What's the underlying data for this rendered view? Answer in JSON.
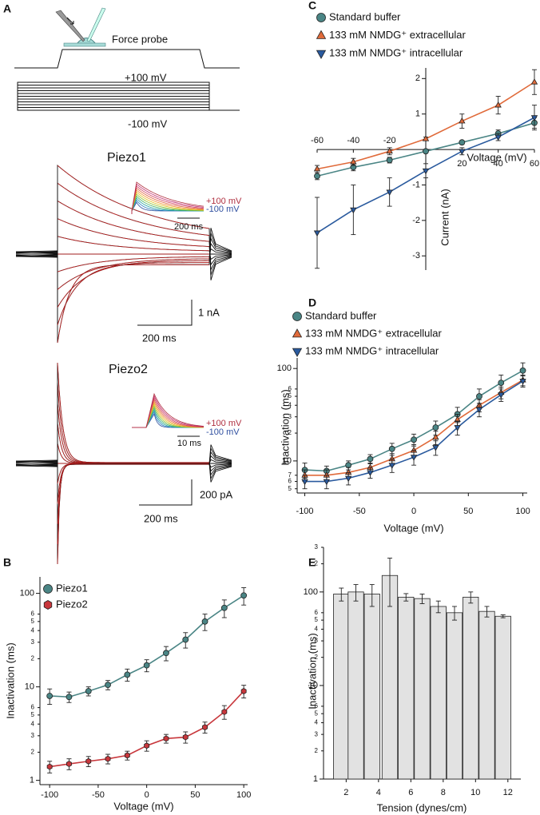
{
  "panel_a": {
    "label": "A",
    "stimulus": "Force probe",
    "step_high": "+100 mV",
    "step_low": "-100 mV",
    "piezo1": {
      "title": "Piezo1",
      "inset_high": "+100 mV",
      "inset_low": "-100 mV",
      "inset_scale": "200 ms",
      "scale_y": "1 nA",
      "scale_x": "200 ms"
    },
    "piezo2": {
      "title": "Piezo2",
      "inset_high": "+100 mV",
      "inset_low": "-100 mV",
      "inset_scale": "10 ms",
      "scale_y": "200 pA",
      "scale_x": "200 ms"
    }
  },
  "chart_data": [
    {
      "type": "line",
      "label": "B",
      "x_label": "Voltage (mV)",
      "y_label": "Inactivation (ms)",
      "yscale": "log",
      "legend": "upper left",
      "x": [
        -100,
        -80,
        -60,
        -40,
        -20,
        0,
        20,
        40,
        60,
        80,
        100
      ],
      "xlim": [
        -110,
        104
      ],
      "xticks": [
        -100,
        -50,
        0,
        50,
        100
      ],
      "ylim": [
        0.9,
        150
      ],
      "yticks": [
        1,
        2,
        3,
        4,
        5,
        6,
        10,
        {
          "value": 20,
          "label": "2"
        },
        {
          "value": 30,
          "label": "3"
        },
        {
          "value": 40,
          "label": "4"
        },
        {
          "value": 50,
          "label": "5"
        },
        {
          "value": 60,
          "label": "6"
        },
        100
      ],
      "series": [
        {
          "name": "Piezo1",
          "color": "#4a8585",
          "marker": "circle",
          "values": [
            8,
            7.8,
            9,
            10.5,
            13.5,
            17,
            23,
            32,
            50,
            70,
            95
          ],
          "errors": [
            1.5,
            1,
            1,
            1.2,
            2,
            2.5,
            4,
            6,
            10,
            15,
            20
          ]
        },
        {
          "name": "Piezo2",
          "color": "#c8373c",
          "marker": "hexagon",
          "values": [
            1.4,
            1.5,
            1.6,
            1.7,
            1.85,
            2.35,
            2.8,
            2.9,
            3.7,
            5.4,
            9
          ],
          "errors": [
            0.2,
            0.2,
            0.2,
            0.2,
            0.2,
            0.3,
            0.3,
            0.4,
            0.5,
            0.9,
            1.4
          ]
        }
      ]
    },
    {
      "type": "line",
      "label": "C",
      "x_label": "Voltage (mV)",
      "y_label": "Current (nA)",
      "legend": "upper left",
      "x": [
        -60,
        -40,
        -20,
        0,
        20,
        40,
        60
      ],
      "xlim": [
        -60,
        60
      ],
      "xticks": [
        -60,
        -40,
        -20,
        20,
        40,
        60
      ],
      "ylim": [
        -3.4,
        2.3
      ],
      "yticks": [
        -3,
        -2,
        -1,
        1,
        2
      ],
      "series": [
        {
          "name": "Standard buffer",
          "color": "#4a8585",
          "marker": "circle",
          "values": [
            -0.75,
            -0.5,
            -0.3,
            -0.05,
            0.2,
            0.45,
            0.75
          ],
          "errors": [
            0.1,
            0.1,
            0.08,
            0.05,
            0.05,
            0.1,
            0.15
          ]
        },
        {
          "name": "133 mM NMDG⁺ extracellular",
          "color": "#e06a3a",
          "marker": "triangle-up",
          "values": [
            -0.55,
            -0.35,
            -0.05,
            0.3,
            0.8,
            1.25,
            1.9
          ],
          "errors": [
            0.1,
            0.1,
            0.1,
            0.05,
            0.2,
            0.25,
            0.35
          ]
        },
        {
          "name": "133 mM NMDG⁺ intracellular",
          "color": "#2a5a9e",
          "marker": "triangle-down",
          "values": [
            -2.35,
            -1.7,
            -1.2,
            -0.6,
            -0.05,
            0.35,
            0.9
          ],
          "errors": [
            1,
            0.7,
            0.4,
            0.2,
            0.1,
            0.1,
            0.35
          ]
        }
      ]
    },
    {
      "type": "line",
      "label": "D",
      "x_label": "Voltage (mV)",
      "y_label": "Inactivation (ms)",
      "yscale": "log",
      "legend": "upper left",
      "x": [
        -100,
        -80,
        -60,
        -40,
        -20,
        0,
        20,
        40,
        60,
        80,
        100
      ],
      "xlim": [
        -107,
        104
      ],
      "xticks": [
        -100,
        -50,
        0,
        50,
        100
      ],
      "ylim": [
        4.5,
        130
      ],
      "yticks": [
        5,
        6,
        7,
        10,
        {
          "value": 20,
          "label": "2"
        },
        {
          "value": 30,
          "label": "3"
        },
        {
          "value": 40,
          "label": "4"
        },
        {
          "value": 50,
          "label": "5"
        },
        {
          "value": 60,
          "label": "6"
        },
        100
      ],
      "series": [
        {
          "name": "Standard buffer",
          "color": "#4a8585",
          "marker": "circle",
          "values": [
            8,
            7.8,
            9,
            10.5,
            13.5,
            17,
            23,
            32,
            50,
            70,
            95
          ],
          "errors": [
            1.5,
            1,
            1,
            1.2,
            2,
            2.5,
            4,
            6,
            10,
            15,
            20
          ]
        },
        {
          "name": "133 mM NMDG⁺ extracellular",
          "color": "#e06a3a",
          "marker": "triangle-up",
          "values": [
            7,
            7,
            7.5,
            8.5,
            10.5,
            13,
            18,
            28,
            40,
            55,
            75
          ],
          "errors": [
            1,
            1,
            1,
            1,
            1.5,
            2,
            3,
            4,
            6,
            8,
            10
          ]
        },
        {
          "name": "133 mM NMDG⁺ intracellular",
          "color": "#2a5a9e",
          "marker": "triangle-down",
          "values": [
            6,
            6,
            6.5,
            7.5,
            9,
            11,
            14,
            23,
            36,
            52,
            73
          ],
          "errors": [
            1,
            1,
            1,
            1,
            1.5,
            2,
            2.5,
            4,
            6,
            8,
            10
          ]
        }
      ]
    },
    {
      "type": "bar",
      "label": "E",
      "x_label": "Tension (dynes/cm)",
      "y_label": "Inactivation (ms)",
      "yscale": "log",
      "color": "#e2e2e2",
      "x": [
        1.7,
        2.6,
        3.6,
        4.7,
        5.7,
        6.7,
        7.7,
        8.7,
        9.7,
        10.7,
        11.7
      ],
      "values": [
        95,
        100,
        95,
        150,
        88,
        85,
        70,
        60,
        88,
        62,
        55
      ],
      "errors": [
        15,
        20,
        25,
        80,
        8,
        10,
        10,
        10,
        12,
        8,
        2
      ],
      "xlim": [
        0.6,
        12.8
      ],
      "xticks": [
        2,
        4,
        6,
        8,
        10,
        12
      ],
      "ylim": [
        1,
        300
      ],
      "yticks": [
        1,
        2,
        3,
        4,
        5,
        6,
        10,
        {
          "value": 20,
          "label": "2"
        },
        {
          "value": 30,
          "label": "3"
        },
        {
          "value": 40,
          "label": "4"
        },
        {
          "value": 50,
          "label": "5"
        },
        {
          "value": 60,
          "label": "6"
        },
        100,
        {
          "value": 200,
          "label": "2"
        },
        {
          "value": 300,
          "label": "3"
        }
      ]
    }
  ]
}
